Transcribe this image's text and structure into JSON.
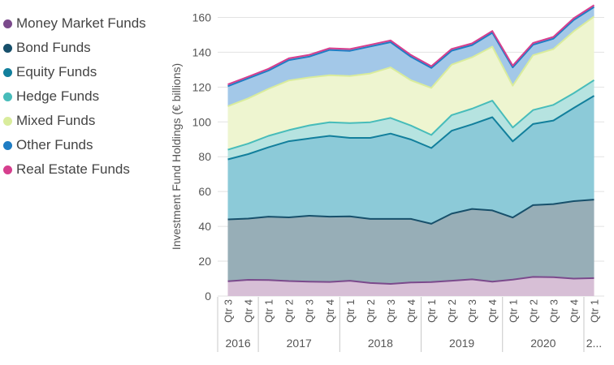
{
  "chart_data": {
    "type": "area",
    "stacked": true,
    "title": "",
    "xlabel": "",
    "ylabel": "Investment Fund Holdings (€ billions)",
    "ylim": [
      0,
      170
    ],
    "yticks": [
      0,
      20,
      40,
      60,
      80,
      100,
      120,
      140,
      160
    ],
    "grid": true,
    "legend_position": "left",
    "categories": [
      "Qtr 3",
      "Qtr 4",
      "Qtr 1",
      "Qtr 2",
      "Qtr 3",
      "Qtr 4",
      "Qtr 1",
      "Qtr 2",
      "Qtr 3",
      "Qtr 4",
      "Qtr 1",
      "Qtr 2",
      "Qtr 3",
      "Qtr 4",
      "Qtr 1",
      "Qtr 2",
      "Qtr 3",
      "Qtr 4",
      "Qtr 1"
    ],
    "year_groups": [
      {
        "label": "2016",
        "count": 2
      },
      {
        "label": "2017",
        "count": 4
      },
      {
        "label": "2018",
        "count": 4
      },
      {
        "label": "2019",
        "count": 4
      },
      {
        "label": "2020",
        "count": 4
      },
      {
        "label": "2...",
        "count": 1
      }
    ],
    "series": [
      {
        "name": "Money Market Funds",
        "line_color": "#7b4a8c",
        "fill_color": "#d7bfd6",
        "values": [
          8.5,
          9.3,
          9.2,
          8.6,
          8.3,
          8.1,
          8.8,
          7.5,
          7.0,
          7.8,
          8.0,
          8.8,
          9.6,
          8.3,
          9.4,
          11.0,
          10.8,
          10.0,
          10.3
        ]
      },
      {
        "name": "Bond Funds",
        "line_color": "#17506b",
        "fill_color": "#97aeb7",
        "values": [
          35.5,
          35.2,
          36.4,
          36.6,
          37.8,
          37.5,
          37.0,
          36.8,
          37.3,
          36.5,
          33.5,
          38.5,
          40.4,
          40.9,
          35.7,
          41.2,
          42.0,
          44.5,
          45.1
        ]
      },
      {
        "name": "Equity Funds",
        "line_color": "#127f9c",
        "fill_color": "#8ccad8",
        "values": [
          34.5,
          37.0,
          39.8,
          43.7,
          44.4,
          46.4,
          45.0,
          46.5,
          49.0,
          45.6,
          43.5,
          47.6,
          48.6,
          53.5,
          43.7,
          46.6,
          48.0,
          53.5,
          59.6
        ]
      },
      {
        "name": "Hedge Funds",
        "line_color": "#47bcba",
        "fill_color": "#b6e3e0",
        "values": [
          5.5,
          6.0,
          6.6,
          6.4,
          7.5,
          7.8,
          8.5,
          9.0,
          9.0,
          8.0,
          7.5,
          9.0,
          9.0,
          9.5,
          8.0,
          8.0,
          9.0,
          8.5,
          9.0
        ]
      },
      {
        "name": "Mixed Funds",
        "line_color": "#d9ec9c",
        "fill_color": "#eef5d0",
        "values": [
          25.0,
          26.0,
          27.0,
          28.5,
          27.5,
          27.0,
          27.0,
          28.0,
          29.0,
          26.0,
          27.0,
          29.0,
          29.5,
          31.0,
          24.0,
          31.5,
          32.0,
          35.5,
          36.5
        ]
      },
      {
        "name": "Other Funds",
        "line_color": "#1f7dc4",
        "fill_color": "#a3c8e8",
        "values": [
          11.5,
          11.5,
          10.5,
          11.7,
          12.0,
          14.5,
          14.5,
          15.5,
          14.5,
          13.5,
          11.5,
          8.0,
          7.0,
          8.0,
          10.5,
          6.0,
          6.0,
          6.5,
          5.5
        ]
      },
      {
        "name": "Real Estate Funds",
        "line_color": "#d63f8e",
        "fill_color": "#e6a6c6",
        "values": [
          1.0,
          1.0,
          1.0,
          1.0,
          1.0,
          1.0,
          1.0,
          1.0,
          1.0,
          1.0,
          1.0,
          1.0,
          1.0,
          1.0,
          1.0,
          1.0,
          1.0,
          1.0,
          1.0
        ]
      }
    ]
  }
}
